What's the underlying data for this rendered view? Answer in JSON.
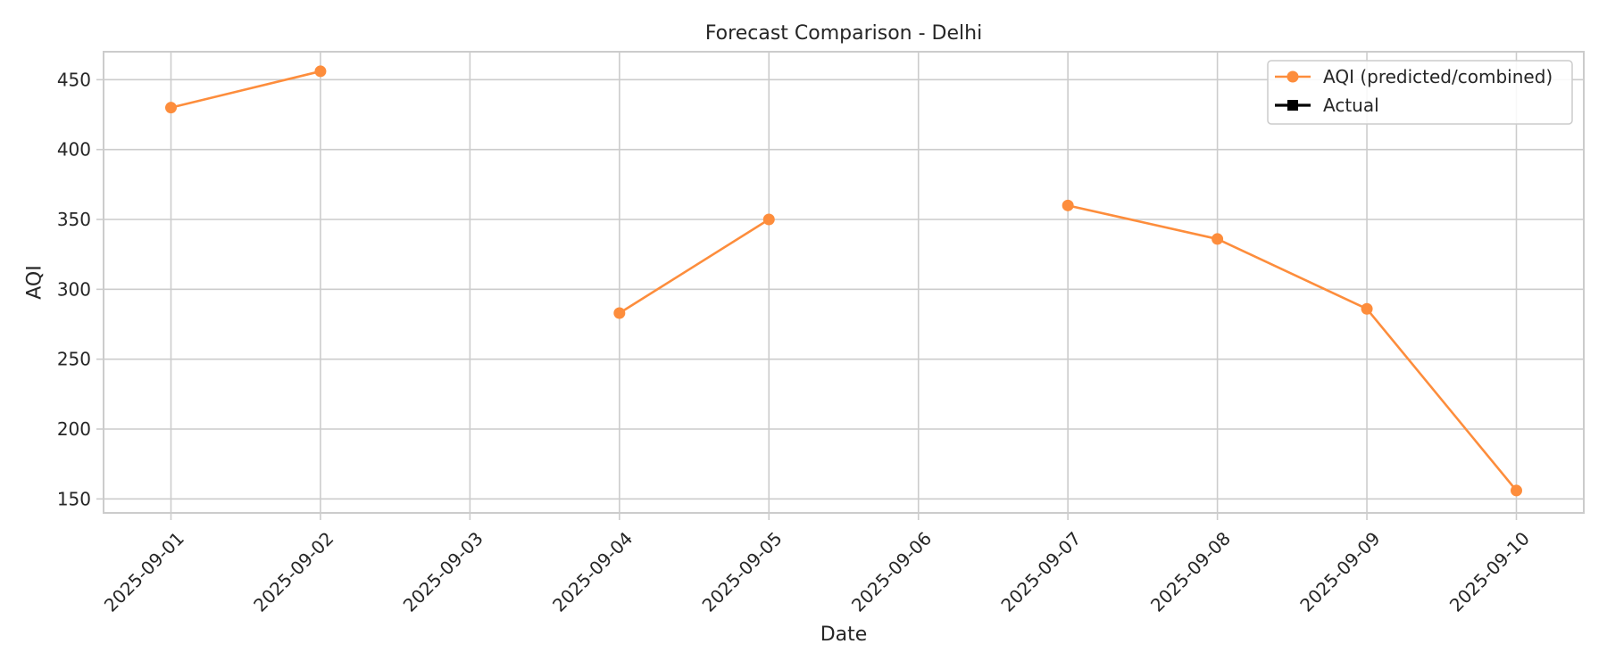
{
  "chart_data": {
    "type": "line",
    "title": "Forecast Comparison - Delhi",
    "xlabel": "Date",
    "ylabel": "AQI",
    "categories": [
      "2025-09-01",
      "2025-09-02",
      "2025-09-03",
      "2025-09-04",
      "2025-09-05",
      "2025-09-06",
      "2025-09-07",
      "2025-09-08",
      "2025-09-09",
      "2025-09-10"
    ],
    "ylim": [
      140,
      470
    ],
    "yticks": [
      150,
      200,
      250,
      300,
      350,
      400,
      450
    ],
    "grid": true,
    "legend_position": "top-right",
    "series": [
      {
        "name": "AQI (predicted/combined)",
        "color": "#fd8d3c",
        "marker": "circle",
        "values": [
          430,
          456,
          null,
          283,
          350,
          null,
          360,
          336,
          286,
          156
        ]
      },
      {
        "name": "Actual",
        "color": "#000000",
        "marker": "square",
        "values": [
          null,
          null,
          null,
          null,
          null,
          null,
          null,
          null,
          null,
          null
        ]
      }
    ]
  }
}
